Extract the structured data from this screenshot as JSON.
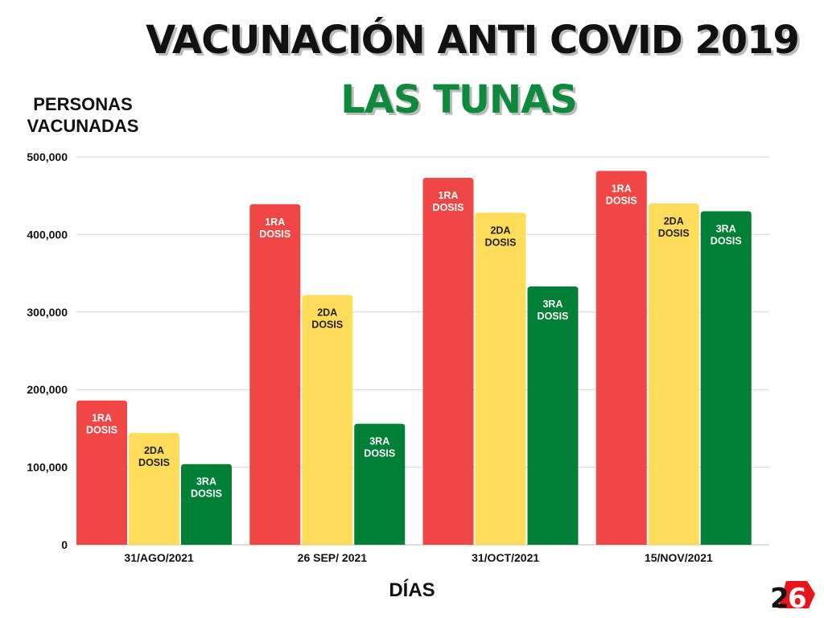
{
  "chart_data": {
    "type": "bar",
    "title": "VACUNACIÓN ANTI COVID 2019",
    "subtitle": "LAS TUNAS",
    "xlabel": "DÍAS",
    "ylabel": "PERSONAS VACUNADAS",
    "ylim": [
      0,
      500000
    ],
    "yticks": [
      0,
      100000,
      200000,
      300000,
      400000,
      500000
    ],
    "ytick_labels": [
      "0",
      "100,000",
      "200,000",
      "300,000",
      "400,000",
      "500,000"
    ],
    "grid": true,
    "categories": [
      "31/AGO/2021",
      "26 SEP/ 2021",
      "31/OCT/2021",
      "15/NOV/2021"
    ],
    "series": [
      {
        "name": "1RA DOSIS",
        "label_lines": [
          "1RA",
          "DOSIS"
        ],
        "color": "#f04646",
        "label_color": "#ffffff",
        "values": [
          186000,
          439000,
          473000,
          482000
        ]
      },
      {
        "name": "2DA DOSIS",
        "label_lines": [
          "2DA",
          "DOSIS"
        ],
        "color": "#ffdc5a",
        "label_color": "#222222",
        "values": [
          144000,
          322000,
          428000,
          440000
        ]
      },
      {
        "name": "3RA DOSIS",
        "label_lines": [
          "3RA",
          "DOSIS"
        ],
        "color": "#008037",
        "label_color": "#ffffff",
        "values": [
          104000,
          156000,
          333000,
          430000
        ]
      }
    ]
  },
  "logo": {
    "text": "26"
  }
}
